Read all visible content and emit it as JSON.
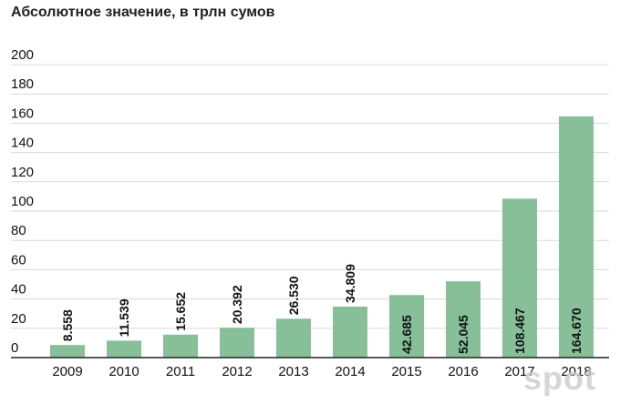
{
  "watermark": "spot",
  "chart_data": {
    "type": "bar",
    "title": "Абсолютное значение, в трлн сумов",
    "categories": [
      "2009",
      "2010",
      "2011",
      "2012",
      "2013",
      "2014",
      "2015",
      "2016",
      "2017",
      "2018"
    ],
    "values": [
      8.558,
      11.539,
      15.652,
      20.392,
      26.53,
      34.809,
      42.685,
      52.045,
      108.467,
      164.67
    ],
    "data_labels": [
      "8.558",
      "11.539",
      "15.652",
      "20.392",
      "26.530",
      "34.809",
      "42.685",
      "52.045",
      "108.467",
      "164.670"
    ],
    "yticks": [
      "0",
      "20",
      "40",
      "60",
      "80",
      "100",
      "120",
      "140",
      "160",
      "180",
      "200"
    ],
    "ylim": [
      0,
      200
    ],
    "xlabel": "",
    "ylabel": "",
    "grid": true,
    "legend": "none",
    "bar_color": "#86bf98",
    "grid_color": "#d9d9d9",
    "baseline_color": "#222222"
  }
}
